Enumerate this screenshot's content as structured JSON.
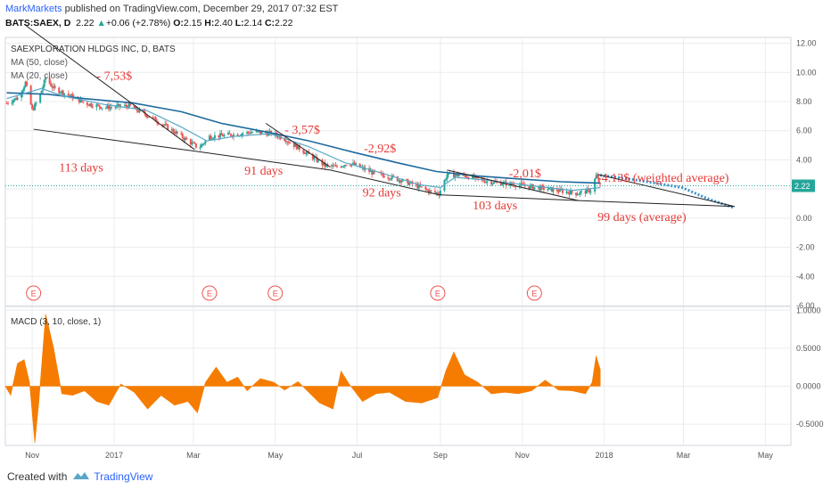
{
  "header": {
    "author": "MarkMarkets",
    "published": " published on TradingView.com, December 29, 2017 07:32 EST",
    "symbol_line": "BATS:SAEX, D",
    "last": "2.22",
    "change": "+0.06 (+2.78%)",
    "open": "2.15",
    "high": "2.40",
    "low": "2.14",
    "close": "2.22"
  },
  "footer": {
    "created_with": "Created with",
    "brand": "TradingView"
  },
  "colors": {
    "up": "#26a69a",
    "down": "#ef5350",
    "ma50": "#1e6a9e",
    "ma20": "#5aa7c8",
    "annotation": "#e53935",
    "macd": "#f57c00",
    "projection": "#3d8fc9",
    "grid": "#e9ecef"
  },
  "chart_data": [
    {
      "type": "candlestick",
      "title": "SAEXPLORATION HLDGS INC, D, BATS",
      "legend": [
        "MA (50, close)",
        "MA (20, close)"
      ],
      "x_tick_labels": [
        "Nov",
        "2017",
        "Mar",
        "May",
        "Jul",
        "Sep",
        "Nov",
        "2018",
        "Mar",
        "May"
      ],
      "x_tick_dates": [
        "2016-11-01",
        "2017-01-01",
        "2017-03-01",
        "2017-05-01",
        "2017-07-01",
        "2017-09-01",
        "2017-11-01",
        "2018-01-01",
        "2018-03-01",
        "2018-05-01"
      ],
      "x_range": [
        "2016-10-12",
        "2018-05-20"
      ],
      "y_range": [
        -6,
        12.4
      ],
      "y_ticks": [
        "12.00",
        "10.00",
        "8.00",
        "6.00",
        "4.00",
        "2.00",
        "0.00",
        "-2.00",
        "-4.00",
        "-6.00"
      ],
      "y_tick_values": [
        12,
        10,
        8,
        6,
        4,
        2,
        0,
        -2,
        -4,
        -6
      ],
      "last_price_label": "2.22",
      "last_price": 2.22,
      "price_path": [
        {
          "date": "2016-10-13",
          "price": 7.9
        },
        {
          "date": "2016-10-22",
          "price": 8.3
        },
        {
          "date": "2016-10-27",
          "price": 9.3
        },
        {
          "date": "2016-11-01",
          "price": 7.4
        },
        {
          "date": "2016-11-06",
          "price": 8.2
        },
        {
          "date": "2016-11-11",
          "price": 9.6
        },
        {
          "date": "2016-11-17",
          "price": 8.9
        },
        {
          "date": "2016-11-27",
          "price": 8.5
        },
        {
          "date": "2016-12-10",
          "price": 7.9
        },
        {
          "date": "2016-12-25",
          "price": 7.6
        },
        {
          "date": "2017-01-12",
          "price": 7.7
        },
        {
          "date": "2017-01-27",
          "price": 7.0
        },
        {
          "date": "2017-02-12",
          "price": 6.1
        },
        {
          "date": "2017-02-25",
          "price": 5.3
        },
        {
          "date": "2017-03-05",
          "price": 4.8
        },
        {
          "date": "2017-03-13",
          "price": 5.6
        },
        {
          "date": "2017-03-27",
          "price": 5.7
        },
        {
          "date": "2017-04-14",
          "price": 5.9
        },
        {
          "date": "2017-04-29",
          "price": 5.8
        },
        {
          "date": "2017-05-07",
          "price": 5.5
        },
        {
          "date": "2017-05-22",
          "price": 4.6
        },
        {
          "date": "2017-06-07",
          "price": 3.6
        },
        {
          "date": "2017-06-15",
          "price": 3.5
        },
        {
          "date": "2017-06-25",
          "price": 3.8
        },
        {
          "date": "2017-07-13",
          "price": 3.1
        },
        {
          "date": "2017-07-27",
          "price": 2.8
        },
        {
          "date": "2017-08-12",
          "price": 2.3
        },
        {
          "date": "2017-08-25",
          "price": 1.8
        },
        {
          "date": "2017-08-31",
          "price": 1.7
        },
        {
          "date": "2017-09-06",
          "price": 3.0
        },
        {
          "date": "2017-09-20",
          "price": 2.9
        },
        {
          "date": "2017-10-07",
          "price": 2.5
        },
        {
          "date": "2017-10-27",
          "price": 2.3
        },
        {
          "date": "2017-11-12",
          "price": 2.1
        },
        {
          "date": "2017-11-27",
          "price": 1.9
        },
        {
          "date": "2017-12-12",
          "price": 1.7
        },
        {
          "date": "2017-12-22",
          "price": 1.9
        },
        {
          "date": "2017-12-26",
          "price": 2.9
        },
        {
          "date": "2017-12-29",
          "price": 2.22
        }
      ],
      "ma50_path": [
        {
          "date": "2016-10-13",
          "price": 8.6
        },
        {
          "date": "2016-11-13",
          "price": 8.5
        },
        {
          "date": "2016-12-10",
          "price": 8.2
        },
        {
          "date": "2017-01-15",
          "price": 7.9
        },
        {
          "date": "2017-02-20",
          "price": 7.3
        },
        {
          "date": "2017-03-22",
          "price": 6.5
        },
        {
          "date": "2017-04-25",
          "price": 5.9
        },
        {
          "date": "2017-05-26",
          "price": 5.3
        },
        {
          "date": "2017-06-29",
          "price": 4.5
        },
        {
          "date": "2017-07-31",
          "price": 3.8
        },
        {
          "date": "2017-08-29",
          "price": 3.2
        },
        {
          "date": "2017-09-28",
          "price": 2.9
        },
        {
          "date": "2017-10-28",
          "price": 2.7
        },
        {
          "date": "2017-11-30",
          "price": 2.5
        },
        {
          "date": "2017-12-29",
          "price": 2.4
        }
      ],
      "ma20_path": [
        {
          "date": "2016-10-13",
          "price": 8.2
        },
        {
          "date": "2016-11-08",
          "price": 8.9
        },
        {
          "date": "2016-11-23",
          "price": 8.4
        },
        {
          "date": "2016-12-25",
          "price": 7.8
        },
        {
          "date": "2017-01-25",
          "price": 7.4
        },
        {
          "date": "2017-02-19",
          "price": 6.3
        },
        {
          "date": "2017-03-11",
          "price": 5.3
        },
        {
          "date": "2017-03-31",
          "price": 5.6
        },
        {
          "date": "2017-04-27",
          "price": 5.8
        },
        {
          "date": "2017-05-26",
          "price": 4.9
        },
        {
          "date": "2017-06-22",
          "price": 3.8
        },
        {
          "date": "2017-07-19",
          "price": 3.1
        },
        {
          "date": "2017-08-16",
          "price": 2.3
        },
        {
          "date": "2017-09-01",
          "price": 2.1
        },
        {
          "date": "2017-09-12",
          "price": 2.8
        },
        {
          "date": "2017-10-06",
          "price": 2.6
        },
        {
          "date": "2017-11-01",
          "price": 2.3
        },
        {
          "date": "2017-12-08",
          "price": 1.9
        },
        {
          "date": "2017-12-29",
          "price": 2.1
        }
      ],
      "projection_path": [
        {
          "date": "2017-12-29",
          "price": 2.95
        },
        {
          "date": "2018-01-26",
          "price": 2.6
        },
        {
          "date": "2018-02-28",
          "price": 2.1
        },
        {
          "date": "2018-03-20",
          "price": 1.3
        },
        {
          "date": "2018-04-08",
          "price": 0.7
        }
      ],
      "trend_lines": [
        {
          "points": [
            {
              "date": "2016-10-26",
              "price": 13.3
            },
            {
              "date": "2017-03-02",
              "price": 4.7
            }
          ]
        },
        {
          "points": [
            {
              "date": "2016-11-02",
              "price": 6.1
            },
            {
              "date": "2017-03-02",
              "price": 4.6
            }
          ]
        },
        {
          "points": [
            {
              "date": "2017-04-24",
              "price": 6.5
            },
            {
              "date": "2017-06-11",
              "price": 3.5
            }
          ]
        },
        {
          "points": [
            {
              "date": "2017-03-02",
              "price": 4.6
            },
            {
              "date": "2017-06-11",
              "price": 3.3
            }
          ]
        },
        {
          "points": [
            {
              "date": "2017-06-11",
              "price": 3.3
            },
            {
              "date": "2017-08-31",
              "price": 1.6
            }
          ]
        },
        {
          "points": [
            {
              "date": "2017-08-31",
              "price": 1.6
            },
            {
              "date": "2017-12-15",
              "price": 1.2
            }
          ]
        },
        {
          "points": [
            {
              "date": "2017-09-06",
              "price": 3.3
            },
            {
              "date": "2017-12-13",
              "price": 1.2
            }
          ]
        },
        {
          "points": [
            {
              "date": "2017-12-27",
              "price": 3.0
            },
            {
              "date": "2018-04-08",
              "price": 0.8
            }
          ]
        },
        {
          "points": [
            {
              "date": "2017-12-15",
              "price": 1.2
            },
            {
              "date": "2018-04-08",
              "price": 0.8
            }
          ]
        }
      ],
      "annotations": [
        {
          "text": "- 7,53$",
          "date": "2016-12-19",
          "price": 9.5
        },
        {
          "text": "113 days",
          "date": "2016-11-21",
          "price": 3.2
        },
        {
          "text": "91 days",
          "date": "2017-04-08",
          "price": 3.0
        },
        {
          "text": "- 3,57$",
          "date": "2017-05-08",
          "price": 5.8
        },
        {
          "text": "-2,92$",
          "date": "2017-07-06",
          "price": 4.5
        },
        {
          "text": "92 days",
          "date": "2017-07-05",
          "price": 1.5
        },
        {
          "text": "-2,01$",
          "date": "2017-10-22",
          "price": 2.8
        },
        {
          "text": "103 days",
          "date": "2017-09-25",
          "price": 0.6
        },
        {
          "text": "-4.13$ (weighted average)",
          "date": "2017-12-27",
          "price": 2.5
        },
        {
          "text": "99 days (average)",
          "date": "2017-12-27",
          "price": -0.2
        }
      ],
      "earnings_markers": [
        {
          "label": "E",
          "date": "2016-11-02"
        },
        {
          "label": "E",
          "date": "2017-03-13"
        },
        {
          "label": "E",
          "date": "2017-05-01"
        },
        {
          "label": "E",
          "date": "2017-08-30"
        },
        {
          "label": "E",
          "date": "2017-11-10"
        }
      ]
    },
    {
      "type": "area",
      "title": "MACD (3, 10, close, 1)",
      "y_range": [
        -0.78,
        1.05
      ],
      "y_ticks": [
        "1.0000",
        "0.5000",
        "0.0000",
        "-0.5000"
      ],
      "y_tick_values": [
        1.0,
        0.5,
        0.0,
        -0.5
      ],
      "series": [
        {
          "points": [
            {
              "date": "2016-10-12",
              "v": 0.0
            },
            {
              "date": "2016-10-16",
              "v": -0.12
            },
            {
              "date": "2016-10-21",
              "v": 0.3
            },
            {
              "date": "2016-10-26",
              "v": 0.35
            },
            {
              "date": "2016-10-30",
              "v": 0.05
            },
            {
              "date": "2016-11-03",
              "v": -0.75
            },
            {
              "date": "2016-11-06",
              "v": -0.2
            },
            {
              "date": "2016-11-11",
              "v": 0.95
            },
            {
              "date": "2016-11-17",
              "v": 0.5
            },
            {
              "date": "2016-11-23",
              "v": -0.1
            },
            {
              "date": "2016-12-01",
              "v": -0.12
            },
            {
              "date": "2016-12-10",
              "v": -0.06
            },
            {
              "date": "2016-12-19",
              "v": -0.2
            },
            {
              "date": "2016-12-28",
              "v": -0.25
            },
            {
              "date": "2017-01-06",
              "v": 0.03
            },
            {
              "date": "2017-01-16",
              "v": -0.08
            },
            {
              "date": "2017-01-26",
              "v": -0.3
            },
            {
              "date": "2017-02-05",
              "v": -0.12
            },
            {
              "date": "2017-02-15",
              "v": -0.25
            },
            {
              "date": "2017-02-25",
              "v": -0.2
            },
            {
              "date": "2017-03-04",
              "v": -0.35
            },
            {
              "date": "2017-03-10",
              "v": 0.05
            },
            {
              "date": "2017-03-18",
              "v": 0.25
            },
            {
              "date": "2017-03-26",
              "v": 0.05
            },
            {
              "date": "2017-04-03",
              "v": 0.12
            },
            {
              "date": "2017-04-10",
              "v": -0.06
            },
            {
              "date": "2017-04-20",
              "v": 0.1
            },
            {
              "date": "2017-04-30",
              "v": 0.05
            },
            {
              "date": "2017-05-08",
              "v": -0.05
            },
            {
              "date": "2017-05-18",
              "v": 0.06
            },
            {
              "date": "2017-06-03",
              "v": -0.22
            },
            {
              "date": "2017-06-13",
              "v": -0.3
            },
            {
              "date": "2017-06-19",
              "v": 0.2
            },
            {
              "date": "2017-06-25",
              "v": 0.03
            },
            {
              "date": "2017-07-05",
              "v": -0.2
            },
            {
              "date": "2017-07-15",
              "v": -0.1
            },
            {
              "date": "2017-07-25",
              "v": -0.08
            },
            {
              "date": "2017-08-06",
              "v": -0.2
            },
            {
              "date": "2017-08-18",
              "v": -0.22
            },
            {
              "date": "2017-08-30",
              "v": -0.15
            },
            {
              "date": "2017-09-05",
              "v": 0.2
            },
            {
              "date": "2017-09-11",
              "v": 0.45
            },
            {
              "date": "2017-09-19",
              "v": 0.15
            },
            {
              "date": "2017-09-29",
              "v": 0.05
            },
            {
              "date": "2017-10-09",
              "v": -0.1
            },
            {
              "date": "2017-10-19",
              "v": -0.08
            },
            {
              "date": "2017-10-29",
              "v": -0.1
            },
            {
              "date": "2017-11-08",
              "v": -0.06
            },
            {
              "date": "2017-11-18",
              "v": 0.08
            },
            {
              "date": "2017-11-28",
              "v": -0.05
            },
            {
              "date": "2017-12-08",
              "v": -0.06
            },
            {
              "date": "2017-12-18",
              "v": -0.1
            },
            {
              "date": "2017-12-23",
              "v": 0.05
            },
            {
              "date": "2017-12-26",
              "v": 0.4
            },
            {
              "date": "2017-12-29",
              "v": 0.22
            }
          ]
        }
      ]
    }
  ]
}
